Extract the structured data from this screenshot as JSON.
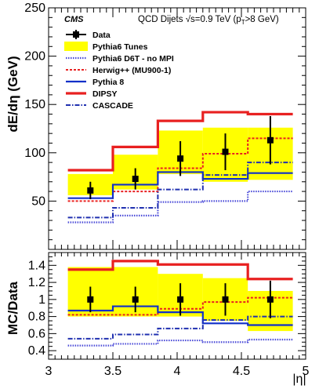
{
  "chart_data": {
    "type": "line",
    "experiment_label": "CMS",
    "title_parts": {
      "main": "QCD Dijets  ",
      "sqrt": "√",
      "energy": "s=0.9 TeV (p",
      "sub": "T",
      "cut": ">8 GeV)"
    },
    "x_label": "|η|",
    "x_ticks": [
      "3",
      "3.5",
      "4",
      "4.5",
      "5"
    ],
    "x_range": [
      3.0,
      5.0
    ],
    "x_bin_edges": [
      3.15,
      3.5,
      3.85,
      4.2,
      4.55,
      4.9
    ],
    "legend_position": "top-left",
    "panels": [
      {
        "id": "top",
        "y_label": "dE/dη (GeV)",
        "y_range": [
          0,
          250
        ],
        "y_ticks": [
          "50",
          "100",
          "150",
          "200",
          "250"
        ],
        "data": {
          "name": "Data",
          "x": [
            3.325,
            3.675,
            4.025,
            4.375,
            4.725
          ],
          "y": [
            61,
            73,
            94,
            101,
            113
          ],
          "err": [
            9,
            11,
            18,
            19,
            25
          ]
        },
        "band": {
          "name": "Pythia6 Tunes",
          "low": [
            56,
            62,
            78,
            70,
            72
          ],
          "high": [
            78,
            98,
            123,
            126,
            126
          ]
        },
        "series": [
          {
            "name": "Pythia6 D6T - no MPI",
            "style": "dotted",
            "color": "#4b4bd8",
            "values": [
              28,
              35,
              49,
              50,
              60
            ]
          },
          {
            "name": "Herwig++ (MU900-1)",
            "style": "dashed",
            "color": "#e82020",
            "values": [
              50,
              60,
              84,
              99,
              115
            ]
          },
          {
            "name": "Pythia 8",
            "style": "solid",
            "color": "#1030c8",
            "values": [
              53,
              67,
              80,
              73,
              79
            ]
          },
          {
            "name": "DIPSY",
            "style": "solid-thick",
            "color": "#e82020",
            "values": [
              82,
              106,
              133,
              142,
              140
            ]
          },
          {
            "name": "CASCADE",
            "style": "dashdot",
            "color": "#2030b0",
            "values": [
              33,
              43,
              62,
              77,
              90
            ]
          }
        ]
      },
      {
        "id": "bottom",
        "y_label": "MC/Data",
        "y_range": [
          0.3,
          1.55
        ],
        "y_ticks": [
          "0.4",
          "0.6",
          "0.8",
          "1",
          "1.2",
          "1.4"
        ],
        "data": {
          "name": "Data",
          "x": [
            3.325,
            3.675,
            4.025,
            4.375,
            4.725
          ],
          "y": [
            1.0,
            1.0,
            1.0,
            1.0,
            1.0
          ],
          "err": [
            0.15,
            0.15,
            0.19,
            0.19,
            0.22
          ]
        },
        "band": {
          "name": "Pythia6 Tunes",
          "low": [
            0.8,
            0.8,
            0.8,
            0.75,
            0.63
          ],
          "high": [
            1.38,
            1.38,
            1.3,
            1.25,
            1.1
          ]
        },
        "series": [
          {
            "name": "Pythia6 D6T - no MPI",
            "style": "dotted",
            "color": "#4b4bd8",
            "values": [
              0.46,
              0.48,
              0.52,
              0.5,
              0.53
            ]
          },
          {
            "name": "Herwig++ (MU900-1)",
            "style": "dashed",
            "color": "#e82020",
            "values": [
              0.82,
              0.82,
              0.89,
              0.97,
              1.02
            ]
          },
          {
            "name": "Pythia 8",
            "style": "solid",
            "color": "#1030c8",
            "values": [
              0.87,
              0.92,
              0.85,
              0.72,
              0.7
            ]
          },
          {
            "name": "DIPSY",
            "style": "solid-thick",
            "color": "#e82020",
            "values": [
              1.35,
              1.45,
              1.41,
              1.41,
              1.24
            ]
          },
          {
            "name": "CASCADE",
            "style": "dashdot",
            "color": "#2030b0",
            "values": [
              0.54,
              0.59,
              0.66,
              0.76,
              0.8
            ]
          }
        ]
      }
    ],
    "legend": [
      {
        "name": "Data",
        "kind": "marker"
      },
      {
        "name": "Pythia6 Tunes",
        "kind": "band"
      },
      {
        "name": "Pythia6 D6T - no MPI",
        "kind": "line",
        "style": "dotted",
        "color": "#4b4bd8"
      },
      {
        "name": "Herwig++ (MU900-1)",
        "kind": "line",
        "style": "dashed",
        "color": "#e82020"
      },
      {
        "name": "Pythia 8",
        "kind": "line",
        "style": "solid",
        "color": "#1030c8"
      },
      {
        "name": "DIPSY",
        "kind": "line",
        "style": "solid-thick",
        "color": "#e82020"
      },
      {
        "name": "CASCADE",
        "kind": "line",
        "style": "dashdot",
        "color": "#2030b0"
      }
    ],
    "colors": {
      "band": "#ffff00",
      "data": "#000000"
    }
  }
}
